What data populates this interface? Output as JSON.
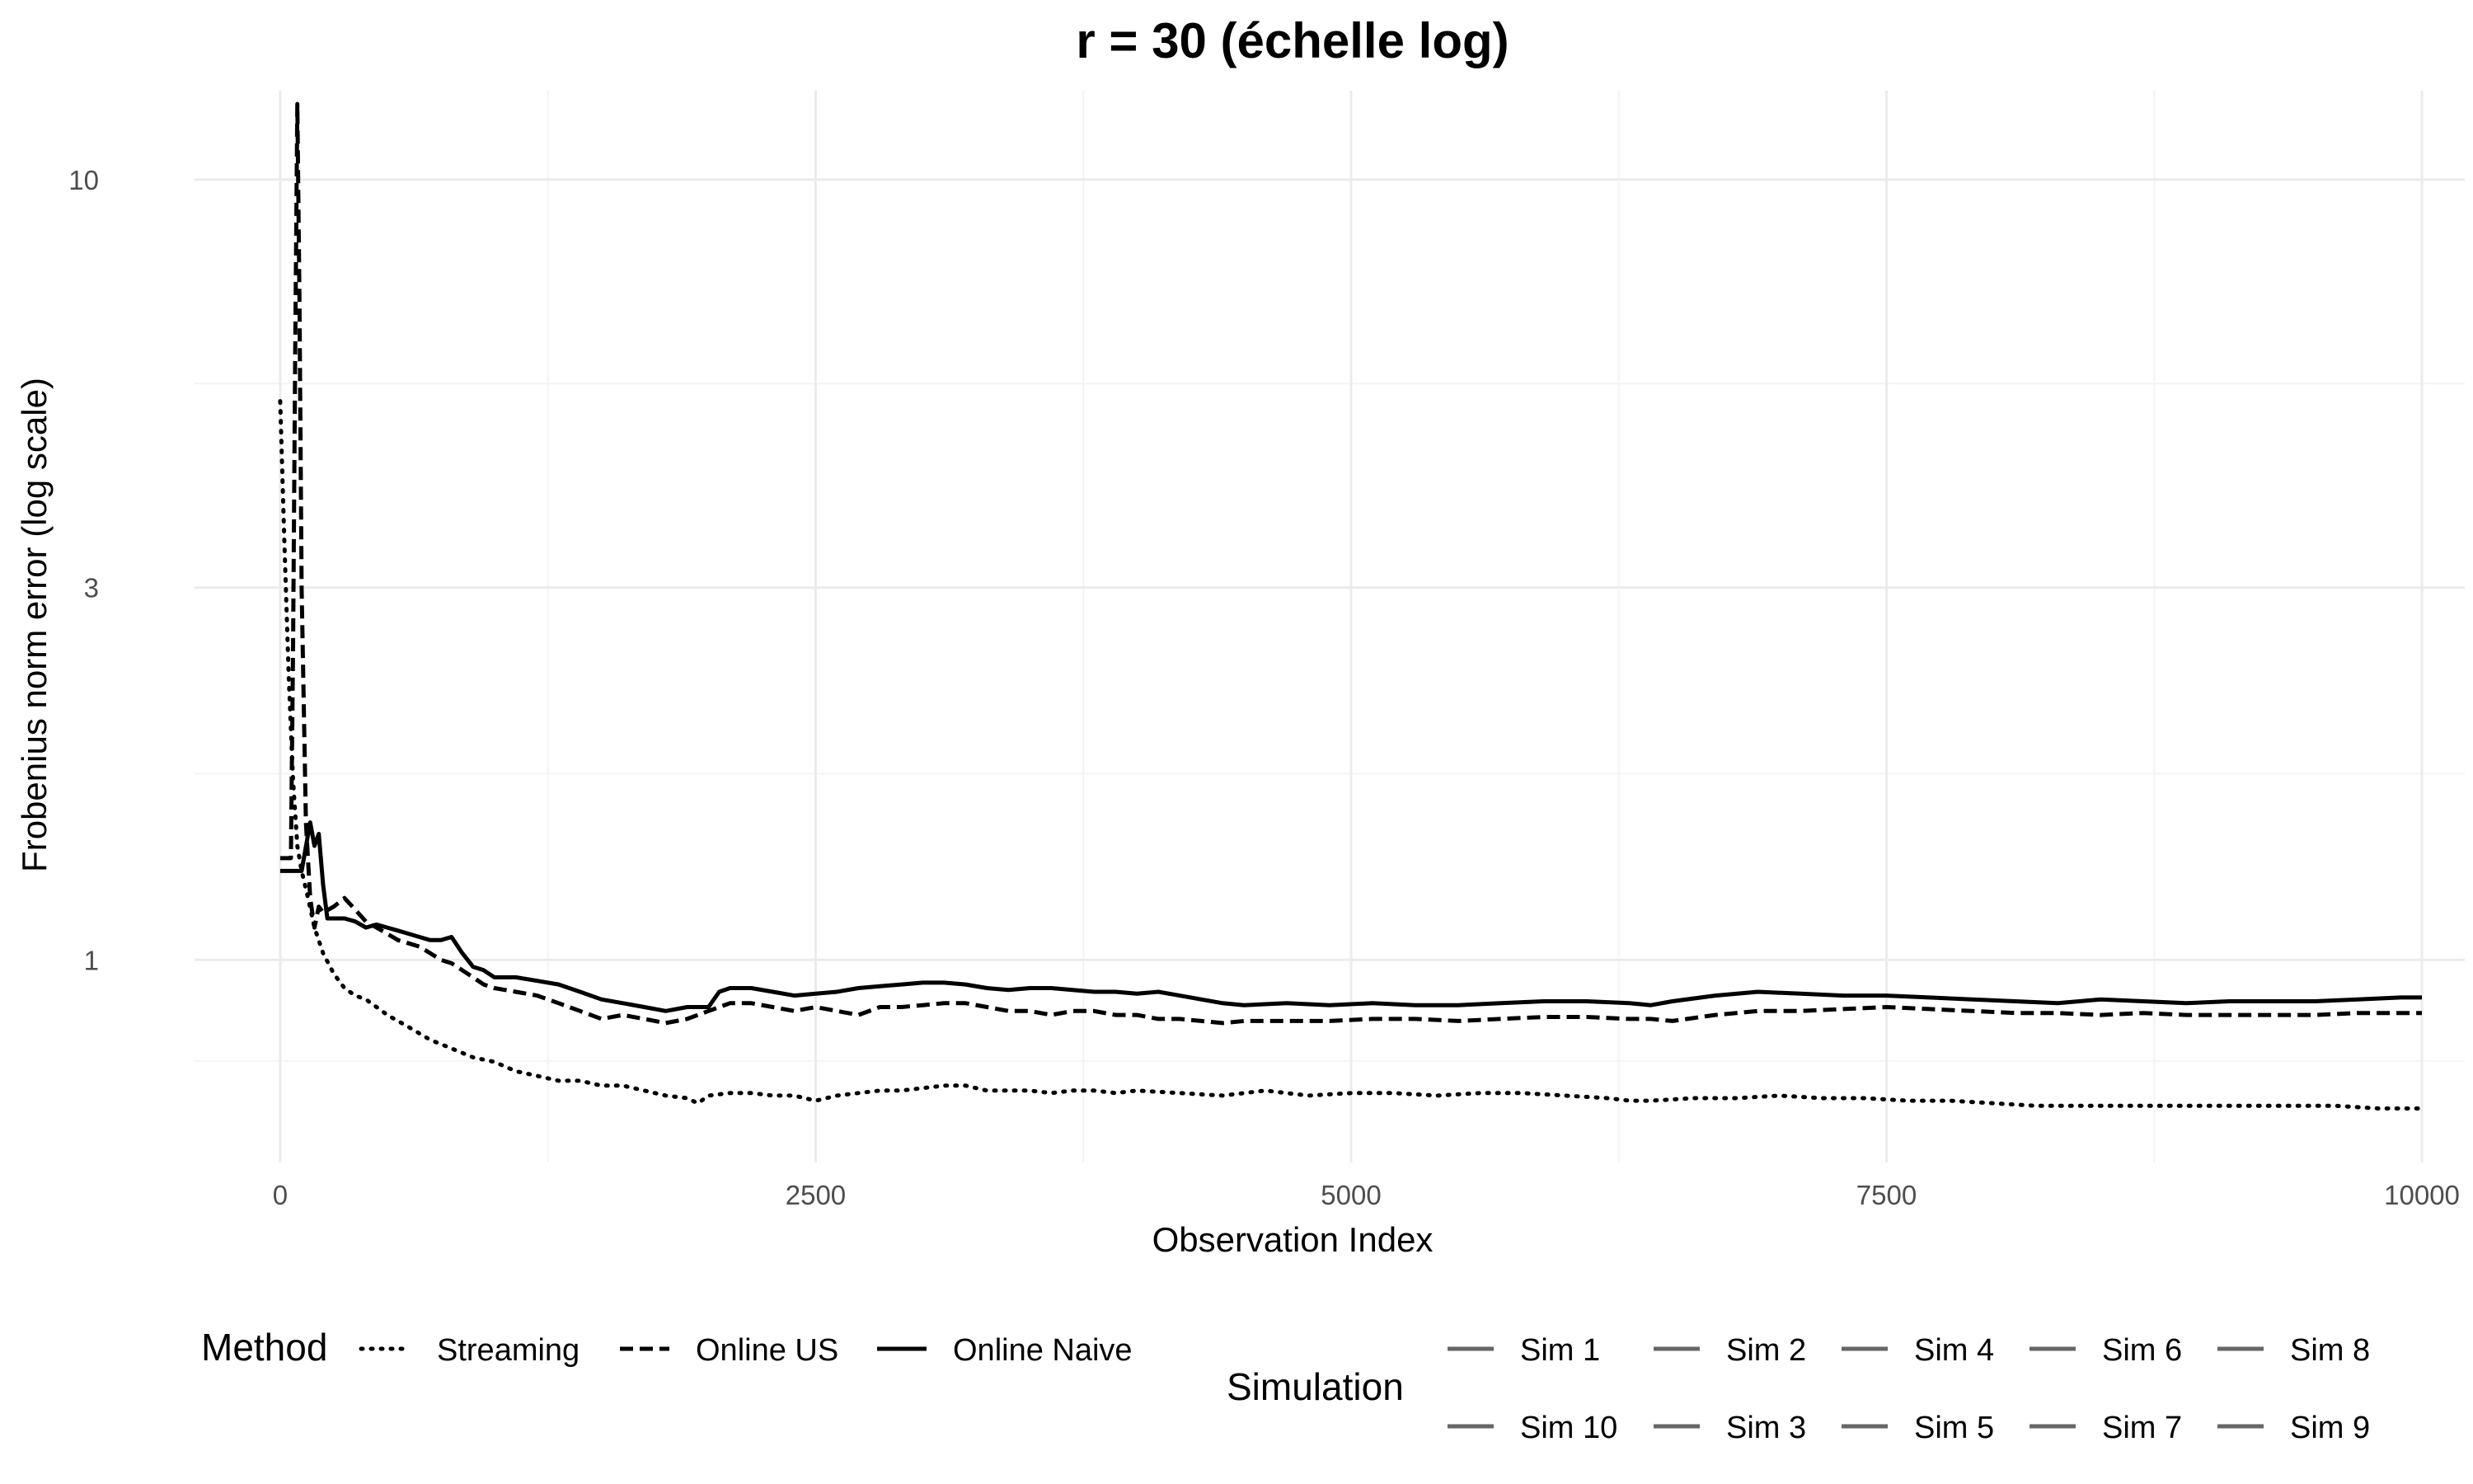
{
  "chart_data": {
    "type": "line",
    "title": "r = 30 (échelle log)",
    "xlabel": "Observation Index",
    "ylabel": "Frobenius norm error (log scale)",
    "xlim": [
      -400,
      10200
    ],
    "ylim": [
      0.55,
      13
    ],
    "y_scale": "log",
    "x_ticks": [
      0,
      2500,
      5000,
      7500,
      10000
    ],
    "x_tick_labels": [
      "0",
      "2500",
      "5000",
      "7500",
      "10000"
    ],
    "y_ticks": [
      1,
      3,
      10
    ],
    "y_tick_labels": [
      "1",
      "3",
      "10"
    ],
    "grid": true,
    "legend_position": "bottom",
    "legend": {
      "method_title": "Method",
      "methods": [
        {
          "label": "Streaming",
          "dash": "dotted"
        },
        {
          "label": "Online US",
          "dash": "dashed"
        },
        {
          "label": "Online Naive",
          "dash": "solid"
        }
      ],
      "simulation_title": "Simulation",
      "simulations": [
        "Sim 1",
        "Sim 2",
        "Sim 4",
        "Sim 6",
        "Sim 8",
        "Sim 10",
        "Sim 3",
        "Sim 5",
        "Sim 7",
        "Sim 9"
      ],
      "simulation_color": "#666666"
    },
    "series": [
      {
        "name": "Streaming",
        "dash": "dotted",
        "x": [
          0,
          20,
          40,
          60,
          80,
          100,
          130,
          160,
          200,
          250,
          300,
          350,
          400,
          450,
          500,
          600,
          700,
          800,
          900,
          1000,
          1100,
          1200,
          1300,
          1400,
          1500,
          1600,
          1700,
          1800,
          1900,
          1950,
          2000,
          2100,
          2200,
          2300,
          2400,
          2500,
          2600,
          2700,
          2800,
          2900,
          3000,
          3100,
          3200,
          3300,
          3400,
          3500,
          3600,
          3700,
          3800,
          3900,
          4000,
          4200,
          4400,
          4600,
          4800,
          5000,
          5200,
          5400,
          5600,
          5800,
          6000,
          6200,
          6300,
          6400,
          6600,
          6800,
          7000,
          7200,
          7400,
          7600,
          7800,
          8000,
          8200,
          8400,
          8600,
          8800,
          9000,
          9200,
          9400,
          9600,
          9800,
          10000
        ],
        "y": [
          5.2,
          3.4,
          2.3,
          1.7,
          1.4,
          1.3,
          1.2,
          1.1,
          1.02,
          0.96,
          0.92,
          0.9,
          0.89,
          0.87,
          0.85,
          0.82,
          0.79,
          0.77,
          0.75,
          0.74,
          0.72,
          0.71,
          0.7,
          0.7,
          0.69,
          0.69,
          0.68,
          0.67,
          0.665,
          0.655,
          0.67,
          0.675,
          0.675,
          0.67,
          0.67,
          0.66,
          0.67,
          0.675,
          0.68,
          0.68,
          0.685,
          0.69,
          0.69,
          0.68,
          0.68,
          0.68,
          0.675,
          0.68,
          0.68,
          0.675,
          0.68,
          0.675,
          0.67,
          0.68,
          0.67,
          0.675,
          0.675,
          0.67,
          0.675,
          0.675,
          0.67,
          0.665,
          0.66,
          0.66,
          0.665,
          0.665,
          0.67,
          0.665,
          0.665,
          0.66,
          0.66,
          0.655,
          0.65,
          0.65,
          0.65,
          0.65,
          0.65,
          0.65,
          0.65,
          0.65,
          0.645,
          0.645
        ]
      },
      {
        "name": "Online US",
        "dash": "dashed",
        "x": [
          0,
          50,
          60,
          70,
          80,
          90,
          100,
          120,
          140,
          160,
          180,
          200,
          250,
          300,
          350,
          400,
          450,
          500,
          550,
          600,
          650,
          700,
          750,
          800,
          850,
          900,
          950,
          1000,
          1100,
          1200,
          1300,
          1400,
          1500,
          1600,
          1700,
          1800,
          1900,
          2000,
          2100,
          2200,
          2300,
          2400,
          2500,
          2600,
          2700,
          2800,
          2900,
          3000,
          3100,
          3200,
          3300,
          3400,
          3500,
          3600,
          3700,
          3800,
          3900,
          4000,
          4100,
          4200,
          4300,
          4400,
          4500,
          4700,
          4900,
          5100,
          5300,
          5500,
          5700,
          5900,
          6100,
          6300,
          6400,
          6500,
          6700,
          6900,
          7100,
          7300,
          7500,
          7700,
          7900,
          8100,
          8300,
          8500,
          8700,
          8900,
          9100,
          9300,
          9500,
          9700,
          9900,
          10000
        ],
        "y": [
          1.35,
          1.35,
          2.5,
          6.0,
          12.5,
          7.0,
          3.0,
          1.5,
          1.2,
          1.1,
          1.17,
          1.15,
          1.17,
          1.2,
          1.16,
          1.12,
          1.1,
          1.08,
          1.06,
          1.05,
          1.04,
          1.02,
          1.0,
          0.99,
          0.97,
          0.95,
          0.93,
          0.92,
          0.91,
          0.9,
          0.88,
          0.86,
          0.84,
          0.85,
          0.84,
          0.83,
          0.84,
          0.86,
          0.88,
          0.88,
          0.87,
          0.86,
          0.87,
          0.86,
          0.85,
          0.87,
          0.87,
          0.875,
          0.88,
          0.88,
          0.87,
          0.86,
          0.86,
          0.85,
          0.86,
          0.86,
          0.85,
          0.85,
          0.84,
          0.84,
          0.835,
          0.83,
          0.835,
          0.835,
          0.835,
          0.84,
          0.84,
          0.835,
          0.84,
          0.845,
          0.845,
          0.84,
          0.84,
          0.835,
          0.85,
          0.86,
          0.86,
          0.865,
          0.87,
          0.865,
          0.86,
          0.855,
          0.855,
          0.85,
          0.855,
          0.85,
          0.85,
          0.85,
          0.85,
          0.855,
          0.855,
          0.855
        ]
      },
      {
        "name": "Online Naive",
        "dash": "solid",
        "x": [
          0,
          60,
          100,
          140,
          160,
          180,
          200,
          220,
          250,
          300,
          350,
          400,
          450,
          500,
          550,
          600,
          650,
          700,
          750,
          800,
          850,
          900,
          950,
          1000,
          1100,
          1200,
          1300,
          1400,
          1500,
          1600,
          1700,
          1800,
          1900,
          2000,
          2050,
          2100,
          2200,
          2300,
          2400,
          2500,
          2600,
          2700,
          2800,
          2900,
          3000,
          3100,
          3200,
          3300,
          3400,
          3500,
          3600,
          3700,
          3800,
          3900,
          4000,
          4100,
          4200,
          4300,
          4400,
          4500,
          4700,
          4900,
          5100,
          5300,
          5500,
          5700,
          5900,
          6100,
          6300,
          6400,
          6500,
          6700,
          6900,
          7100,
          7300,
          7500,
          7700,
          7900,
          8100,
          8300,
          8500,
          8700,
          8900,
          9100,
          9300,
          9500,
          9700,
          9900,
          10000
        ],
        "y": [
          1.3,
          1.3,
          1.3,
          1.5,
          1.4,
          1.45,
          1.25,
          1.13,
          1.13,
          1.13,
          1.12,
          1.1,
          1.11,
          1.1,
          1.09,
          1.08,
          1.07,
          1.06,
          1.06,
          1.07,
          1.02,
          0.98,
          0.97,
          0.95,
          0.95,
          0.94,
          0.93,
          0.91,
          0.89,
          0.88,
          0.87,
          0.86,
          0.87,
          0.87,
          0.91,
          0.92,
          0.92,
          0.91,
          0.9,
          0.905,
          0.91,
          0.92,
          0.925,
          0.93,
          0.935,
          0.935,
          0.93,
          0.92,
          0.915,
          0.92,
          0.92,
          0.915,
          0.91,
          0.91,
          0.905,
          0.91,
          0.9,
          0.89,
          0.88,
          0.875,
          0.88,
          0.875,
          0.88,
          0.875,
          0.875,
          0.88,
          0.885,
          0.885,
          0.88,
          0.875,
          0.885,
          0.9,
          0.91,
          0.905,
          0.9,
          0.9,
          0.895,
          0.89,
          0.885,
          0.88,
          0.89,
          0.885,
          0.88,
          0.885,
          0.885,
          0.885,
          0.89,
          0.895,
          0.895
        ]
      }
    ]
  }
}
